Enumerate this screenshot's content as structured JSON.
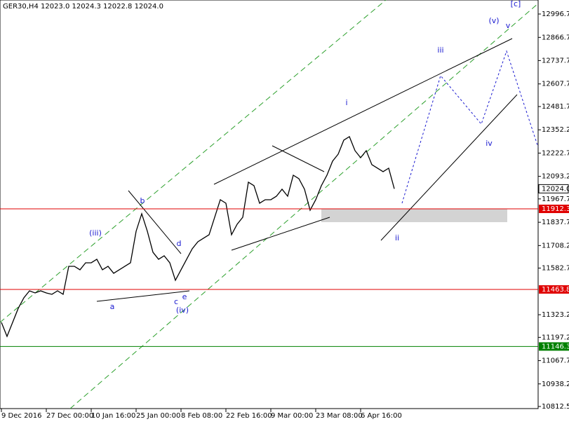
{
  "chart_data": {
    "type": "line",
    "title": "GER30,H4  12023.0 12024.3 12022.8 12024.0",
    "color": "#000000",
    "categories": [
      "9 Dec 2016",
      null,
      null,
      null,
      null,
      null,
      null,
      null,
      "27 Dec 00:00",
      null,
      null,
      null,
      null,
      null,
      null,
      null,
      "10 Jan 16:00",
      null,
      null,
      null,
      null,
      null,
      null,
      null,
      "25 Jan 00:00",
      null,
      null,
      null,
      null,
      null,
      null,
      null,
      "8 Feb 08:00",
      null,
      null,
      null,
      null,
      null,
      null,
      null,
      "22 Feb 16:00",
      null,
      null,
      null,
      null,
      null,
      null,
      null,
      "9 Mar 00:00",
      null,
      null,
      null,
      null,
      null,
      null,
      null,
      "23 Mar 08:00",
      null,
      null,
      null,
      null,
      null,
      null,
      null,
      "6 Apr 16:00",
      null,
      null,
      null,
      null,
      null,
      null,
      null,
      null,
      null,
      null,
      null,
      null,
      null,
      null,
      null,
      null,
      null,
      null,
      null,
      null,
      null,
      null,
      null,
      null,
      null,
      null,
      null,
      null,
      null,
      null,
      null
    ],
    "values": [
      11280.7,
      11202.7,
      11280.7,
      11358.7,
      11417.2,
      11456.2,
      11444.5,
      11456.2,
      11444.5,
      11436.7,
      11456.2,
      11436.7,
      11592.7,
      11592.7,
      11573.2,
      11612.2,
      11612.2,
      11631.7,
      11573.2,
      11592.7,
      11553.7,
      11573.2,
      11592.7,
      11612.2,
      11787.7,
      11885.2,
      11787.7,
      11670.7,
      11631.7,
      11651.2,
      11612.2,
      11514.7,
      11573.2,
      11631.7,
      11690.2,
      11729.2,
      11748.7,
      11768.2,
      11865.7,
      11963.2,
      11943.7,
      11768.2,
      11826.7,
      11865.7,
      12060.7,
      12041.2,
      11943.7,
      11963.2,
      11963.2,
      11982.7,
      12021.7,
      11982.7,
      12099.7,
      12080.2,
      12021.7,
      11904.7,
      11963.2,
      12041.2,
      12099.7,
      12177.7,
      12216.7,
      12294.7,
      12314.2,
      12236.2,
      12197.2,
      12236.2,
      12158.2,
      12138.7,
      12119.2,
      12138.7,
      12024.0,
      null,
      null,
      null,
      null,
      null,
      null,
      null,
      null,
      null,
      null,
      null,
      null,
      null,
      null,
      null,
      null,
      null,
      null,
      null,
      null,
      null,
      null,
      null,
      null,
      null
    ],
    "ylim": [
      10796.9,
      13074.7
    ],
    "yticks": [
      12996.7,
      12866.7,
      12737.7,
      12607.7,
      12481.7,
      12352.2,
      12222.7,
      12093.2,
      11967.7,
      11837.7,
      11708.2,
      11582.7,
      11323.2,
      11197.2,
      11067.7,
      10938.2,
      10812.5
    ],
    "levels": [
      {
        "value": 11912.3,
        "color": "#e00000"
      },
      {
        "value": 11463.8,
        "color": "#e00000"
      },
      {
        "value": 11146.3,
        "color": "#008000"
      }
    ],
    "current_price": {
      "value": 12024,
      "label": "12024.0"
    },
    "wave_labels": [
      "(iii)",
      "b",
      "d",
      "a",
      "c",
      "e",
      "(iv)",
      "i",
      "ii",
      "iii",
      "iv",
      "(v)",
      "v",
      "[c]"
    ]
  }
}
